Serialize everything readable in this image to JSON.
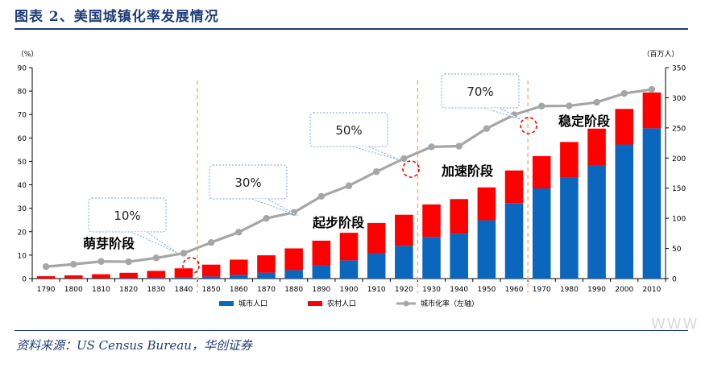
{
  "header": {
    "title": "图表 2、美国城镇化率发展情况"
  },
  "footer": {
    "source": "资料来源：US Census Bureau，华创证券",
    "watermark": "WWW"
  },
  "chart_data": {
    "type": "bar",
    "categories": [
      "1790",
      "1800",
      "1810",
      "1820",
      "1830",
      "1840",
      "1850",
      "1860",
      "1870",
      "1880",
      "1890",
      "1900",
      "1910",
      "1920",
      "1930",
      "1940",
      "1950",
      "1960",
      "1970",
      "1980",
      "1990",
      "2000",
      "2010"
    ],
    "series": [
      {
        "name": "城市人口",
        "kind": "stacked-bar",
        "axis": "right",
        "color": "#0b66bd",
        "values": [
          0.2,
          0.3,
          0.5,
          0.7,
          1.1,
          1.8,
          3.5,
          6.2,
          9.9,
          14.1,
          22.1,
          30.2,
          42.1,
          54.3,
          69.2,
          74.7,
          96.8,
          125.3,
          149.6,
          167.1,
          187.1,
          222.4,
          249.3
        ]
      },
      {
        "name": "农村人口",
        "kind": "stacked-bar",
        "axis": "right",
        "color": "#ff0000",
        "values": [
          3.7,
          5.0,
          6.7,
          8.9,
          11.7,
          15.2,
          19.6,
          25.2,
          28.7,
          36.0,
          40.8,
          45.8,
          50.2,
          51.6,
          53.8,
          57.2,
          54.5,
          54.1,
          53.6,
          59.5,
          61.7,
          59.1,
          59.5
        ]
      },
      {
        "name": "城市化率（左轴）",
        "kind": "line",
        "axis": "left",
        "color": "#a6a6a6",
        "values": [
          5.1,
          6.1,
          7.3,
          7.2,
          8.8,
          10.8,
          15.4,
          19.8,
          25.7,
          28.2,
          35.1,
          39.6,
          45.6,
          51.2,
          56.2,
          56.5,
          64.0,
          69.9,
          73.6,
          73.7,
          75.2,
          79.0,
          80.7
        ]
      }
    ],
    "y_left": {
      "label": "（%）",
      "min": 0,
      "max": 90,
      "ticks": [
        0,
        10,
        20,
        30,
        40,
        50,
        60,
        70,
        80,
        90
      ]
    },
    "y_right": {
      "label": "（百万人）",
      "min": 0,
      "max": 350,
      "ticks": [
        0,
        50,
        100,
        150,
        200,
        250,
        300,
        350
      ]
    },
    "stage_dividers_after": [
      "1840",
      "1920",
      "1960"
    ],
    "stage_labels": [
      {
        "text": "萌芽阶段",
        "near": "1810"
      },
      {
        "text": "起步阶段",
        "near": "1900"
      },
      {
        "text": "加速阶段",
        "near": "1940"
      },
      {
        "text": "稳定阶段",
        "near": "1980"
      }
    ],
    "callouts": [
      {
        "text": "10%",
        "points_to": "1840"
      },
      {
        "text": "30%",
        "points_to": "1880"
      },
      {
        "text": "50%",
        "points_to": "1920"
      },
      {
        "text": "70%",
        "points_to": "1960"
      }
    ],
    "legend_position": "bottom",
    "grid": false
  }
}
